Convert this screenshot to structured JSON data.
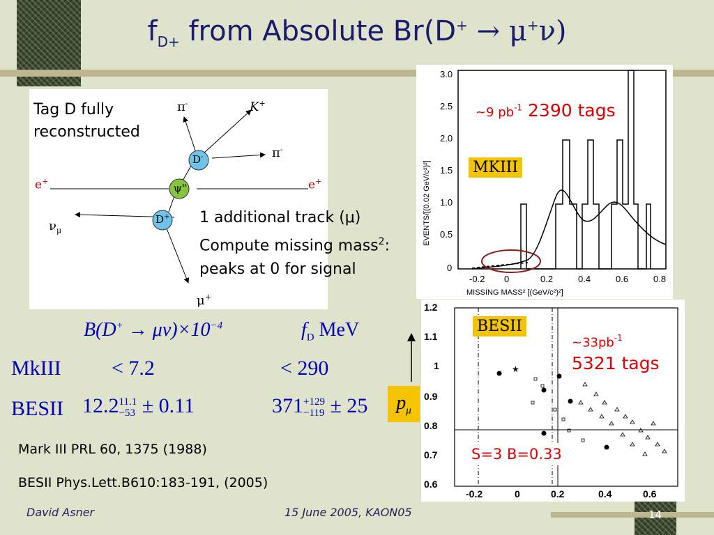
{
  "slide": {
    "title_main": "f",
    "title_sub": "D+",
    "title_rest": " from Absolute Br(D",
    "title_sup": "+",
    "title_arrow": " → μ",
    "title_mu_sup": "+",
    "title_nu": "ν)",
    "footer_author": "David Asner",
    "footer_date": "15 June 2005, KAON05",
    "page_number": "14"
  },
  "diagram": {
    "tag_text_line1": "Tag D fully",
    "tag_text_line2": "reconstructed",
    "track_line1": "1 additional track (μ)",
    "track_line2_pre": "Compute missing mass",
    "track_line2_sup": "2",
    "track_line2_post": ":",
    "track_line3": "peaks at 0 for signal",
    "labels": {
      "pi_minus_top": "π",
      "pi_minus_top_sup": "-",
      "k_plus": "K",
      "k_plus_sup": "+",
      "pi_minus_right": "π",
      "pi_minus_right_sup": "-",
      "e_plus_left": "e",
      "e_plus_left_sup": "+",
      "e_plus_right": "e",
      "e_plus_right_sup": "+",
      "d_minus": "D",
      "d_minus_sup": "-",
      "psi": "ψ\"",
      "d_plus": "D",
      "d_plus_sup": "+",
      "nu_mu": "ν",
      "nu_mu_sub": "μ",
      "mu_plus": "μ",
      "mu_plus_sup": "+"
    }
  },
  "table": {
    "header_b": "B(D",
    "header_b_sup": "+",
    "header_b_rest": " → μν)×10",
    "header_b_exp": "−4",
    "header_f": "f",
    "header_f_sub": "D",
    "header_f_unit": " MeV",
    "rows": [
      {
        "name": "MkIII",
        "b": "< 7.2",
        "f": "< 290"
      },
      {
        "name": "BESII",
        "b_val": "12.2",
        "b_up": "11.1",
        "b_dn": "−53",
        "b_sys": " ± 0.11",
        "f_val": "371",
        "f_up": "+129",
        "f_dn": "−119",
        "f_sys": " ± 25"
      }
    ],
    "p_mu": "p",
    "p_mu_sub": "μ"
  },
  "references": {
    "ref1": "Mark III  PRL 60, 1375 (1988)",
    "ref2": "BESII  Phys.Lett.B610:183-191, (2005)"
  },
  "mkiii_plot": {
    "label": "MKIII",
    "lumi_pre": "~9 pb",
    "lumi_sup": "-1",
    "tags": " 2390 tags",
    "ylabel": "EVENTS/[(0.02 GeV/c²)²]",
    "xlabel": "MISSING MASS² [(GeV/c²)²]",
    "yticks": [
      "3.0",
      "2.5",
      "2.0",
      "1.5",
      "1.0",
      "0.5",
      "0"
    ],
    "xticks": [
      "-0.2",
      "0",
      "0.2",
      "0.4",
      "0.6",
      "0.8"
    ]
  },
  "besii_plot": {
    "label": "BESII",
    "lumi_pre": "~33pb",
    "lumi_sup": "-1",
    "tags": "5321 tags",
    "sb": "S=3 B=0.33",
    "yticks": [
      "1.2",
      "1.1",
      "1",
      "0.9",
      "0.8",
      "0.7",
      "0.6"
    ],
    "xticks": [
      "-0.2",
      "0",
      "0.2",
      "0.4",
      "0.6"
    ]
  }
}
